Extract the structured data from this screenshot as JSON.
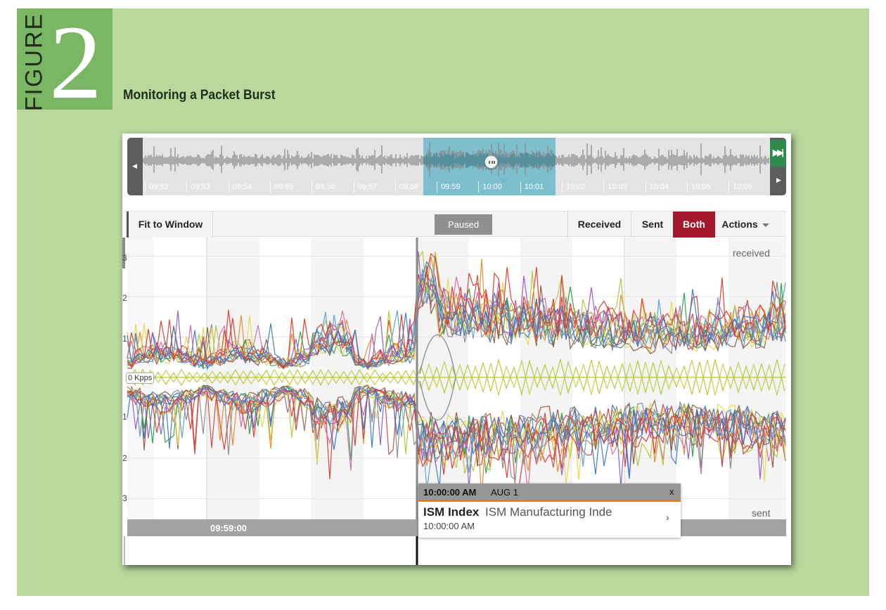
{
  "figure": {
    "word": "FIGURE",
    "number": "2",
    "title": "Monitoring a Packet Burst"
  },
  "timeline": {
    "ticks": [
      "09:52",
      "09:53",
      "09:54",
      "09:55",
      "09:56",
      "09:57",
      "09:58",
      "09:59",
      "10:00",
      "10:01",
      "10:02",
      "10:03",
      "10:04",
      "10:05",
      "10:06"
    ],
    "left_icon": "scroll-left-icon",
    "right_icon": "scroll-right-icon",
    "jump_icon": "jump-to-end-icon",
    "handle_icon": "drag-handle-icon"
  },
  "toolbar": {
    "fit_to_window": "Fit to Window",
    "paused": "Paused",
    "received": "Received",
    "sent": "Sent",
    "both": "Both",
    "actions": "Actions",
    "active_mode": "both"
  },
  "chart": {
    "received_label": "received",
    "sent_label": "sent",
    "zero_label": "0 Kpps",
    "y_ticks_top": [
      "3",
      "2",
      "1"
    ],
    "y_ticks_bottom": [
      "1",
      "2",
      "3"
    ],
    "cursor_time": "09:59:00"
  },
  "tooltip": {
    "time": "10:00:00 AM",
    "date": "AUG 1",
    "close": "x",
    "name": "ISM Index",
    "description": "ISM Manufacturing Inde",
    "subtime": "10:00:00 AM",
    "chevron": "›"
  },
  "colors": {
    "frame": "#b8d89c",
    "tab": "#7bb665",
    "both_active": "#a4182d",
    "selection": "#5fb6c8",
    "jump_green": "#2e8b4c",
    "tooltip_accent": "#e07b1e",
    "series": [
      "#d93a2b",
      "#3a76c4",
      "#e88a2a",
      "#2e9e4a",
      "#8e5bc7",
      "#d16aa7",
      "#b6c43a",
      "#8c5a3c",
      "#888888",
      "#e4d84c",
      "#c84848",
      "#5a9ed6"
    ]
  }
}
